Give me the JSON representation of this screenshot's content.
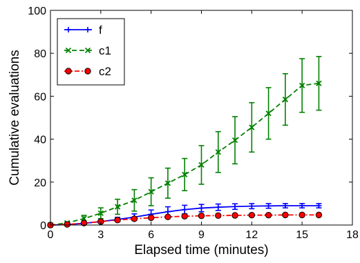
{
  "chart_data": {
    "type": "line",
    "title": "",
    "xlabel": "Elapsed time (minutes)",
    "ylabel": "Cumulative evaluations",
    "xlim": [
      0,
      18
    ],
    "ylim": [
      0,
      100
    ],
    "xticks": [
      0,
      3,
      6,
      9,
      12,
      15,
      18
    ],
    "yticks": [
      0,
      20,
      40,
      60,
      80,
      100
    ],
    "grid": false,
    "legend_position": "top-left",
    "series": [
      {
        "name": "f",
        "color": "#0000ff",
        "line_style": "solid",
        "marker": "plus",
        "x": [
          0,
          1,
          2,
          3,
          4,
          5,
          6,
          7,
          8,
          9,
          10,
          11,
          12,
          13,
          14,
          15,
          16
        ],
        "y": [
          0,
          0.2,
          0.8,
          1.6,
          2.6,
          3.7,
          5.0,
          6.2,
          7.2,
          7.9,
          8.3,
          8.6,
          8.8,
          8.9,
          9.0,
          9.0,
          9.0
        ],
        "err": [
          0,
          0.1,
          0.4,
          0.7,
          1.0,
          1.5,
          2.0,
          2.3,
          2.0,
          1.7,
          1.5,
          1.3,
          1.2,
          1.1,
          1.0,
          1.0,
          1.0
        ]
      },
      {
        "name": "c1",
        "color": "#008000",
        "line_style": "dashed",
        "marker": "x",
        "x": [
          0,
          1,
          2,
          3,
          4,
          5,
          6,
          7,
          8,
          9,
          10,
          11,
          12,
          13,
          14,
          15,
          16
        ],
        "y": [
          0,
          1,
          3,
          5.5,
          8.5,
          11.5,
          15.5,
          19.5,
          23.5,
          28,
          34,
          39.5,
          45.5,
          52,
          58.5,
          65,
          66
        ],
        "err": [
          0,
          0.5,
          1.5,
          2.5,
          3.5,
          5,
          6.5,
          7,
          7.5,
          9,
          9.5,
          11,
          11.5,
          12,
          12,
          12.5,
          12.5
        ]
      },
      {
        "name": "c2",
        "color": "#ff0000",
        "line_style": "dashdot",
        "marker": "circle",
        "x": [
          0,
          1,
          2,
          3,
          4,
          5,
          6,
          7,
          8,
          9,
          10,
          11,
          12,
          13,
          14,
          15,
          16
        ],
        "y": [
          0,
          0.3,
          0.9,
          1.6,
          2.3,
          2.9,
          3.4,
          3.8,
          4.1,
          4.3,
          4.4,
          4.5,
          4.6,
          4.6,
          4.7,
          4.7,
          4.7
        ],
        "err": [
          0,
          0.2,
          0.4,
          0.5,
          0.6,
          0.6,
          0.6,
          0.5,
          0.5,
          0.5,
          0.5,
          0.5,
          0.5,
          0.5,
          0.5,
          0.5,
          0.5
        ]
      }
    ]
  }
}
